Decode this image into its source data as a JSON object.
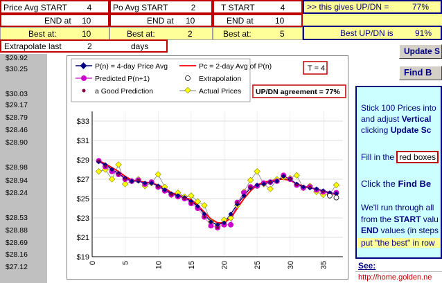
{
  "params": {
    "price_avg": {
      "start_label": "Price Avg START",
      "start_value": "4",
      "end_label": "END at",
      "end_value": "10",
      "best_label": "Best at:",
      "best_value": "10"
    },
    "po_avg": {
      "start_label": "Po Avg START",
      "start_value": "2",
      "end_label": "END at",
      "end_value": "10",
      "best_label": "Best at:",
      "best_value": "2"
    },
    "t": {
      "start_label": "T START",
      "start_value": "4",
      "end_label": "END at",
      "end_value": "10",
      "best_label": "Best at:",
      "best_value": "5"
    },
    "gives_label": ">> this gives UP/DN =",
    "gives_value": "77%",
    "best_updn_label": "Best UP/DN is",
    "best_updn_value": "91%",
    "extrapolate_label": "Extrapolate last",
    "extrapolate_value": "2",
    "extrapolate_unit": "days"
  },
  "prices": [
    "$29.92",
    "$30.25",
    "$30.03",
    "$29.17",
    "$28.79",
    "$28.46",
    "$28.90",
    "$28.98",
    "$28.94",
    "$28.24",
    "$28.53",
    "$28.88",
    "$28.69",
    "$28.16",
    "$27.12"
  ],
  "buttons": {
    "update": "Update S",
    "find": "Find B"
  },
  "info": {
    "line1": "Stick 100 Prices into",
    "line2a": "and adjust ",
    "line2b": "Vertical",
    "line3a": "clicking ",
    "line3b": "Update Sc",
    "line4a": "Fill in the ",
    "line4b": "red boxes",
    "line5a": "Click the ",
    "line5b": "Find Be",
    "line6": "We'll run through all",
    "line7a": "from the ",
    "line7b": "START",
    "line7c": " valu",
    "line8a": "END",
    "line8b": " values (in steps",
    "line9": "put \"the best\" in row"
  },
  "see_label": "See:",
  "link_text": "http://home.golden.ne",
  "chart_data": {
    "type": "line",
    "legend": {
      "p": "P(n) = 4-day Price Avg",
      "pc": "Pc = 2-day Avg of P(n)",
      "predicted": "Predicted P(n+1)",
      "extrapolation": "Extrapolation",
      "good": "a Good Prediction",
      "actual": "Actual Prices"
    },
    "t_label": "T = 4",
    "agreement_label": "UP/DN agreement = 77%",
    "xlim": [
      0,
      38
    ],
    "ylim": [
      19,
      34
    ],
    "x_ticks": [
      0,
      5,
      10,
      15,
      20,
      25,
      30,
      35
    ],
    "y_ticks": [
      "$19",
      "$21",
      "$23",
      "$25",
      "$27",
      "$29",
      "$31",
      "$33"
    ],
    "colors": {
      "p": "#000080",
      "pc": "#ff0000",
      "predicted": "#cc00cc",
      "good": "#800040",
      "actual": "#ffff00",
      "actual_line": "#808080"
    },
    "x": [
      1,
      2,
      3,
      4,
      5,
      6,
      7,
      8,
      9,
      10,
      11,
      12,
      13,
      14,
      15,
      16,
      17,
      18,
      19,
      20,
      21,
      22,
      23,
      24,
      25,
      26,
      27,
      28,
      29,
      30,
      31,
      32,
      33,
      34,
      35,
      36,
      37
    ],
    "actual": [
      27.8,
      28.0,
      27.0,
      28.5,
      26.5,
      26.8,
      27.0,
      26.3,
      26.6,
      27.5,
      26.2,
      25.4,
      25.6,
      25.2,
      25.3,
      24.7,
      24.3,
      22.6,
      22.2,
      22.8,
      23.0,
      24.3,
      25.7,
      26.9,
      27.8,
      26.5,
      26.0,
      27.0,
      27.2,
      27.1,
      27.4,
      26.1,
      26.3,
      25.7,
      25.4,
      25.5,
      26.4
    ],
    "p_values": [
      28.8,
      28.5,
      28.0,
      27.6,
      27.1,
      26.8,
      26.8,
      26.6,
      26.6,
      26.3,
      25.9,
      25.5,
      25.3,
      25.1,
      24.7,
      24.2,
      23.4,
      22.6,
      22.3,
      22.5,
      23.4,
      24.4,
      25.3,
      26.1,
      26.4,
      26.5,
      26.7,
      26.8,
      27.3,
      27.0,
      26.5,
      26.2,
      26.1,
      26.0,
      25.8,
      25.6,
      25.5
    ],
    "pc_values": [
      28.9,
      28.6,
      28.2,
      27.8,
      27.3,
      26.9,
      26.8,
      26.7,
      26.6,
      26.4,
      26.1,
      25.6,
      25.4,
      25.1,
      24.9,
      24.3,
      23.6,
      22.9,
      22.5,
      22.5,
      23.0,
      24.0,
      25.0,
      25.8,
      26.4,
      26.7,
      26.8,
      27.0,
      27.0,
      26.9,
      26.5,
      26.3,
      26.1,
      26.0,
      25.8,
      25.6,
      25.4
    ],
    "predicted": [
      28.9,
      28.3,
      27.8,
      27.5,
      27.0,
      26.8,
      26.9,
      26.5,
      26.7,
      26.2,
      25.8,
      25.4,
      25.2,
      25.0,
      24.5,
      24.0,
      23.1,
      22.2,
      22.0,
      22.3,
      22.3,
      24.6,
      25.6,
      26.2,
      26.3,
      26.6,
      26.7,
      26.8,
      27.4,
      27.0,
      26.4,
      26.1,
      26.2,
      25.9,
      25.7,
      25.5,
      25.6
    ],
    "good_predictions": [
      1,
      2,
      4,
      5,
      7,
      10,
      12,
      14,
      15,
      17,
      19,
      22,
      24,
      27,
      30,
      31,
      33,
      35
    ],
    "extrapolation": [
      36,
      37
    ],
    "extrapolation_values": [
      25.3,
      25.1
    ]
  }
}
